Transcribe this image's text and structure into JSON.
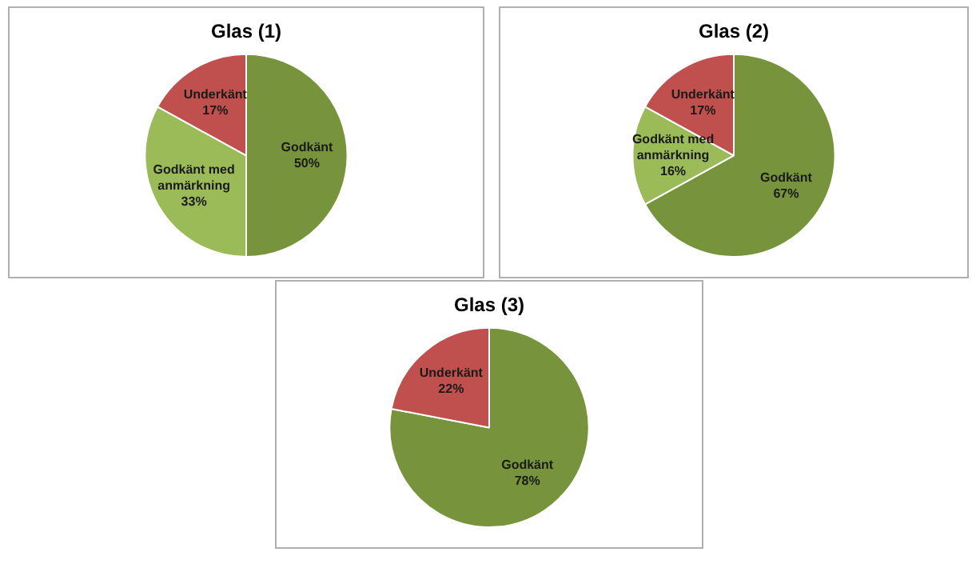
{
  "chart_data": [
    {
      "type": "pie",
      "title": "Glas (1)",
      "categories": [
        "Godkänt",
        "Godkänt med anmärkning",
        "Underkänt"
      ],
      "values": [
        50,
        33,
        17
      ],
      "value_labels": [
        "50%",
        "33%",
        "17%"
      ],
      "colors": [
        "#77933c",
        "#9bbb59",
        "#c0504d"
      ],
      "legend": false
    },
    {
      "type": "pie",
      "title": "Glas (2)",
      "categories": [
        "Godkänt",
        "Godkänt med anmärkning",
        "Underkänt"
      ],
      "values": [
        67,
        16,
        17
      ],
      "value_labels": [
        "67%",
        "16%",
        "17%"
      ],
      "colors": [
        "#77933c",
        "#9bbb59",
        "#c0504d"
      ],
      "legend": false
    },
    {
      "type": "pie",
      "title": "Glas (3)",
      "categories": [
        "Godkänt",
        "Underkänt"
      ],
      "values": [
        78,
        22
      ],
      "value_labels": [
        "78%",
        "22%"
      ],
      "colors": [
        "#77933c",
        "#c0504d"
      ],
      "legend": false
    }
  ]
}
